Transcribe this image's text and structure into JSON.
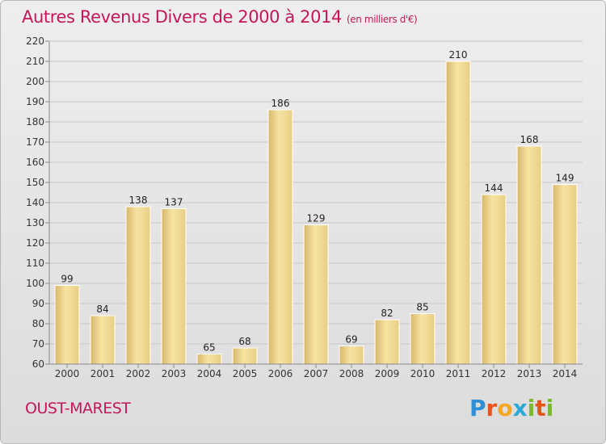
{
  "title": "Autres Revenus Divers de 2000 à 2014",
  "unit_note": "(en milliers d'€)",
  "commune": "OUST-MAREST",
  "brand": {
    "letters": [
      "P",
      "r",
      "o",
      "x",
      "i",
      "t",
      "i"
    ],
    "colors": [
      "#2f8fd6",
      "#e8541c",
      "#f5a623",
      "#2aa9d9",
      "#7ab929",
      "#e8541c",
      "#7ab929"
    ]
  },
  "colors": {
    "bar_light": "#f7e4a3",
    "bar_dark": "#d8b76a",
    "title": "#c2185b",
    "grid": "#c8c8c8"
  },
  "chart_data": {
    "type": "bar",
    "title": "Autres Revenus Divers de 2000 à 2014",
    "subtitle": "(en milliers d'€)",
    "xlabel": "",
    "ylabel": "",
    "ylim": [
      60,
      220
    ],
    "ytick_step": 10,
    "grid": true,
    "categories": [
      "2000",
      "2001",
      "2002",
      "2003",
      "2004",
      "2005",
      "2006",
      "2007",
      "2008",
      "2009",
      "2010",
      "2011",
      "2012",
      "2013",
      "2014"
    ],
    "values": [
      99,
      84,
      138,
      137,
      65,
      68,
      186,
      129,
      69,
      82,
      85,
      210,
      144,
      168,
      149
    ]
  }
}
